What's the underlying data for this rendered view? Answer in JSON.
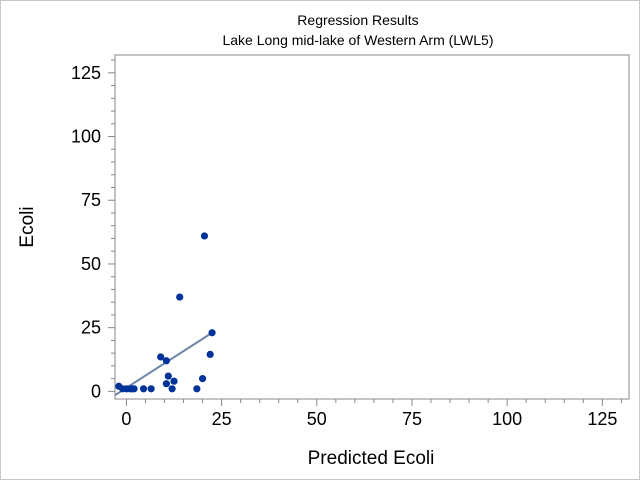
{
  "chart_data": {
    "type": "scatter",
    "title": "Regression Results",
    "subtitle": "Lake Long mid-lake of Western Arm (LWL5)",
    "xlabel": "Predicted Ecoli",
    "ylabel": "Ecoli",
    "xlim": [
      -3,
      132
    ],
    "ylim": [
      -3,
      132
    ],
    "x_ticks": [
      0,
      25,
      50,
      75,
      100,
      125
    ],
    "y_ticks": [
      0,
      25,
      50,
      75,
      100,
      125
    ],
    "grid": false,
    "legend": "none",
    "colors": {
      "points": "#003399",
      "fit_line": "#6e87a8",
      "axis": "#888888",
      "border": "#c8c8c8"
    },
    "points": [
      {
        "x": -2,
        "y": 2
      },
      {
        "x": -1,
        "y": 1
      },
      {
        "x": 0,
        "y": 1
      },
      {
        "x": 1,
        "y": 1
      },
      {
        "x": 1.5,
        "y": 1
      },
      {
        "x": 2,
        "y": 1
      },
      {
        "x": 4.5,
        "y": 1
      },
      {
        "x": 6.5,
        "y": 1
      },
      {
        "x": 9,
        "y": 13.5
      },
      {
        "x": 10.5,
        "y": 12
      },
      {
        "x": 10.5,
        "y": 3
      },
      {
        "x": 11,
        "y": 6
      },
      {
        "x": 12,
        "y": 1
      },
      {
        "x": 12.5,
        "y": 4
      },
      {
        "x": 14,
        "y": 37
      },
      {
        "x": 18.5,
        "y": 1
      },
      {
        "x": 20,
        "y": 5
      },
      {
        "x": 20.5,
        "y": 61
      },
      {
        "x": 22,
        "y": 14.5
      },
      {
        "x": 22.5,
        "y": 23
      }
    ],
    "fit_line": [
      {
        "x": -3,
        "y": -1.5
      },
      {
        "x": 22.5,
        "y": 23
      }
    ]
  }
}
